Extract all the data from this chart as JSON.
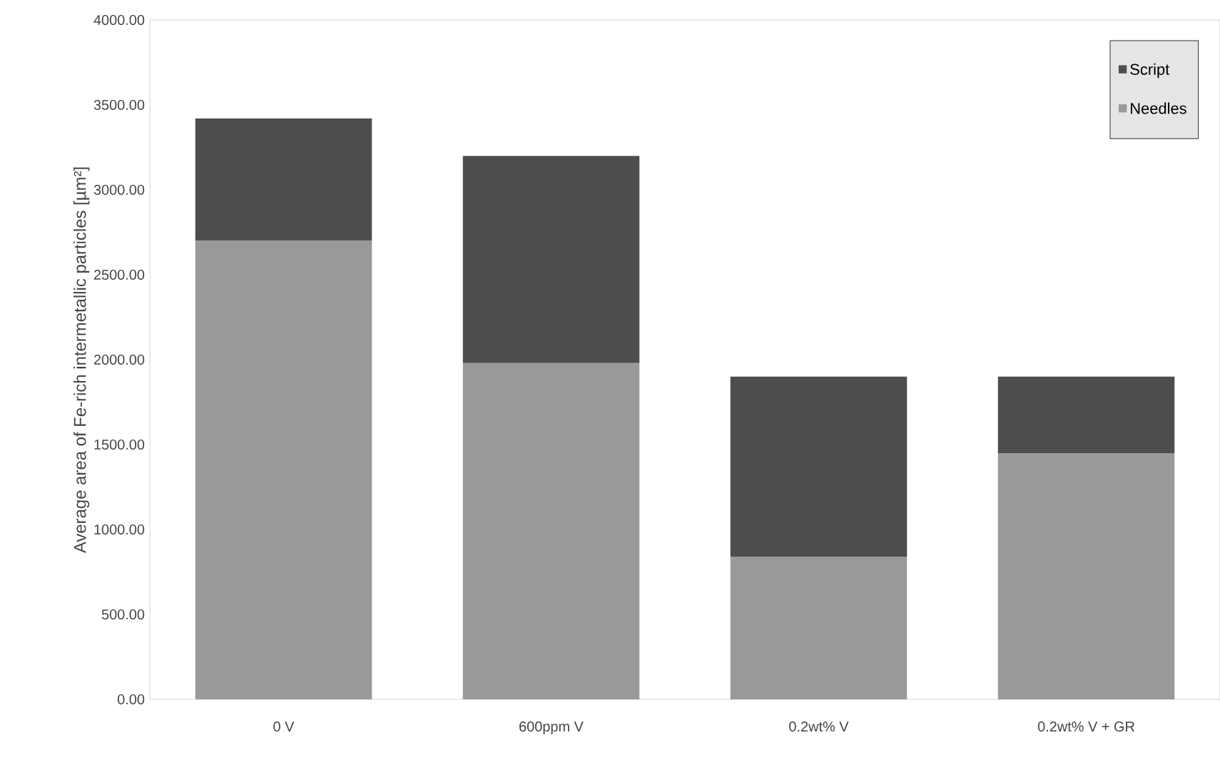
{
  "chart_data": {
    "type": "bar",
    "stacked": true,
    "ylabel": "Average area of Fe-rich intermetallic particles [µm²]",
    "categories": [
      "0 V",
      "600ppm V",
      "0.2wt% V",
      "0.2wt% V + GR"
    ],
    "series": [
      {
        "name": "Needles",
        "color": "#999999",
        "values": [
          2700,
          1980,
          840,
          1450
        ]
      },
      {
        "name": "Script",
        "color": "#4d4d4d",
        "values": [
          720,
          1220,
          1060,
          450
        ]
      }
    ],
    "ylim": [
      0,
      4000
    ],
    "yticks": [
      {
        "value": 0,
        "label": "0.00"
      },
      {
        "value": 500,
        "label": "500.00"
      },
      {
        "value": 1000,
        "label": "1000.00"
      },
      {
        "value": 1500,
        "label": "1500.00"
      },
      {
        "value": 2000,
        "label": "2000.00"
      },
      {
        "value": 2500,
        "label": "2500.00"
      },
      {
        "value": 3000,
        "label": "3000.00"
      },
      {
        "value": 3500,
        "label": "3500.00"
      },
      {
        "value": 4000,
        "label": "4000.00"
      }
    ],
    "grid": false,
    "legend": "top right"
  }
}
